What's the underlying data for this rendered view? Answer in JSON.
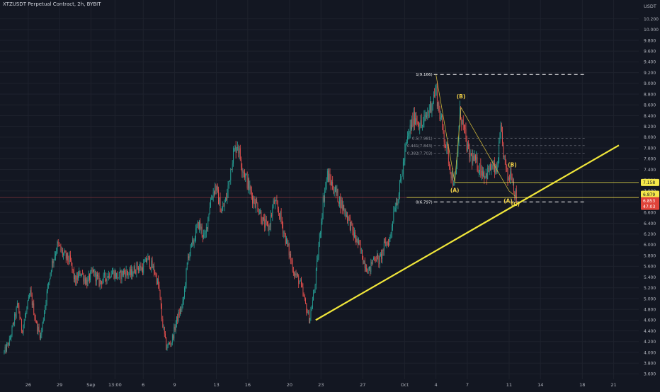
{
  "header": {
    "symbol_line": "XTZUSDT Perpetual Contract, 2h, BYBIT"
  },
  "chart_data": {
    "type": "candlestick",
    "symbol": "XTZUSDT Perpetual Contract",
    "interval": "2h",
    "exchange": "BYBIT",
    "currency_label": "USDT",
    "y_ticks": [
      "3.600",
      "3.800",
      "4.000",
      "4.200",
      "4.400",
      "4.600",
      "4.800",
      "5.000",
      "5.200",
      "5.400",
      "5.600",
      "5.800",
      "6.000",
      "6.200",
      "6.400",
      "6.600",
      "6.800",
      "7.000",
      "7.200",
      "7.400",
      "7.600",
      "7.800",
      "8.000",
      "8.200",
      "8.400",
      "8.600",
      "8.800",
      "9.000",
      "9.200",
      "9.400",
      "9.600",
      "9.800",
      "10.000",
      "10.200"
    ],
    "ylim": [
      3.5,
      10.55
    ],
    "x_ticks": [
      {
        "label": "26",
        "day": 0.0
      },
      {
        "label": "29",
        "day": 3.0
      },
      {
        "label": "Sep",
        "day": 6.0
      },
      {
        "label": "13:00",
        "day": 8.3
      },
      {
        "label": "6",
        "day": 11.0
      },
      {
        "label": "9",
        "day": 14.0
      },
      {
        "label": "13",
        "day": 18.0
      },
      {
        "label": "16",
        "day": 21.0
      },
      {
        "label": "20",
        "day": 25.0
      },
      {
        "label": "23",
        "day": 28.0
      },
      {
        "label": "27",
        "day": 32.0
      },
      {
        "label": "Oct",
        "day": 36.0
      },
      {
        "label": "4",
        "day": 39.0
      },
      {
        "label": "7",
        "day": 42.0
      },
      {
        "label": "11",
        "day": 46.0
      },
      {
        "label": "14",
        "day": 49.0
      },
      {
        "label": "18",
        "day": 53.0
      },
      {
        "label": "21",
        "day": 56.0
      }
    ],
    "price_path": [
      [
        -2.3,
        4.0
      ],
      [
        -1.8,
        4.2
      ],
      [
        -1.0,
        4.9
      ],
      [
        -0.6,
        4.4
      ],
      [
        0.2,
        5.1
      ],
      [
        0.8,
        4.5
      ],
      [
        1.2,
        4.3
      ],
      [
        1.7,
        5.0
      ],
      [
        2.2,
        5.6
      ],
      [
        2.8,
        6.0
      ],
      [
        3.4,
        5.8
      ],
      [
        4.0,
        5.7
      ],
      [
        4.5,
        5.3
      ],
      [
        5.0,
        5.5
      ],
      [
        5.6,
        5.3
      ],
      [
        6.2,
        5.5
      ],
      [
        6.8,
        5.3
      ],
      [
        7.4,
        5.4
      ],
      [
        8.0,
        5.5
      ],
      [
        8.6,
        5.4
      ],
      [
        9.2,
        5.5
      ],
      [
        9.8,
        5.45
      ],
      [
        10.4,
        5.6
      ],
      [
        10.9,
        5.55
      ],
      [
        11.4,
        5.75
      ],
      [
        12.1,
        5.5
      ],
      [
        12.5,
        5.2
      ],
      [
        12.8,
        4.6
      ],
      [
        13.2,
        4.1
      ],
      [
        13.7,
        4.2
      ],
      [
        14.2,
        4.6
      ],
      [
        14.8,
        4.9
      ],
      [
        15.3,
        5.8
      ],
      [
        15.7,
        6.0
      ],
      [
        16.3,
        6.4
      ],
      [
        16.9,
        6.1
      ],
      [
        17.4,
        6.8
      ],
      [
        17.9,
        7.1
      ],
      [
        18.5,
        6.6
      ],
      [
        19.0,
        6.9
      ],
      [
        19.5,
        7.6
      ],
      [
        20.0,
        7.9
      ],
      [
        20.4,
        7.5
      ],
      [
        20.9,
        7.2
      ],
      [
        21.4,
        6.9
      ],
      [
        22.0,
        6.7
      ],
      [
        22.5,
        6.4
      ],
      [
        23.0,
        6.3
      ],
      [
        23.5,
        6.8
      ],
      [
        24.0,
        6.6
      ],
      [
        24.5,
        6.2
      ],
      [
        24.9,
        5.9
      ],
      [
        25.4,
        5.5
      ],
      [
        26.0,
        5.3
      ],
      [
        26.5,
        4.9
      ],
      [
        26.9,
        4.6
      ],
      [
        27.4,
        5.2
      ],
      [
        27.8,
        6.0
      ],
      [
        28.2,
        6.8
      ],
      [
        28.6,
        7.3
      ],
      [
        29.1,
        7.1
      ],
      [
        29.6,
        6.9
      ],
      [
        30.1,
        6.7
      ],
      [
        30.6,
        6.5
      ],
      [
        31.1,
        6.2
      ],
      [
        31.6,
        6.0
      ],
      [
        32.1,
        5.7
      ],
      [
        32.6,
        5.5
      ],
      [
        33.1,
        5.8
      ],
      [
        33.6,
        5.7
      ],
      [
        34.1,
        6.0
      ],
      [
        34.6,
        6.1
      ],
      [
        35.0,
        6.7
      ],
      [
        35.4,
        6.9
      ],
      [
        35.8,
        7.4
      ],
      [
        36.2,
        7.9
      ],
      [
        36.6,
        8.2
      ],
      [
        37.0,
        8.4
      ],
      [
        37.3,
        8.3
      ],
      [
        37.6,
        8.2
      ],
      [
        37.9,
        8.3
      ],
      [
        38.3,
        8.5
      ],
      [
        38.7,
        8.7
      ],
      [
        39.0,
        8.9
      ],
      [
        39.2,
        8.6
      ],
      [
        39.5,
        8.3
      ],
      [
        39.9,
        7.9
      ],
      [
        40.3,
        7.5
      ],
      [
        40.6,
        7.2
      ],
      [
        40.9,
        7.25
      ],
      [
        41.3,
        8.5
      ],
      [
        41.7,
        8.1
      ],
      [
        42.1,
        7.7
      ],
      [
        42.5,
        7.6
      ],
      [
        42.9,
        7.5
      ],
      [
        43.3,
        7.4
      ],
      [
        43.8,
        7.3
      ],
      [
        44.3,
        7.45
      ],
      [
        44.8,
        7.35
      ],
      [
        45.2,
        8.1
      ],
      [
        45.6,
        7.5
      ],
      [
        45.9,
        7.2
      ],
      [
        46.2,
        7.4
      ],
      [
        46.5,
        7.0
      ],
      [
        46.75,
        6.85
      ]
    ],
    "current_price": 6.879,
    "price_label_lower": 6.853,
    "countdown_label": "47:03",
    "hline_price_upper": 7.158,
    "hline_price_last": 6.879,
    "trendline": {
      "start": [
        27.5,
        4.6
      ],
      "end": [
        56.5,
        7.85
      ]
    },
    "fibonacci": {
      "x_start": 38.8,
      "x_end": 53.4,
      "levels": [
        {
          "label": "1(9.166)",
          "price": 9.166,
          "style": "bold"
        },
        {
          "label": "0.5(7.981)",
          "price": 7.981,
          "style": "faint"
        },
        {
          "label": "0.441(7.843)",
          "price": 7.843,
          "style": "faint"
        },
        {
          "label": "0.382(7.703)",
          "price": 7.703,
          "style": "faint"
        },
        {
          "label": "0(6.797)",
          "price": 6.797,
          "style": "bold"
        }
      ]
    },
    "abc_pattern_1": {
      "points": [
        [
          39.0,
          9.166
        ],
        [
          40.8,
          7.16
        ],
        [
          41.4,
          8.55
        ],
        [
          46.0,
          7.0
        ],
        [
          46.6,
          6.9
        ]
      ],
      "labels": [
        {
          "text": "(A)",
          "day": 40.8,
          "price": 6.98,
          "color": "#f0d048"
        },
        {
          "text": "(B)",
          "day": 41.4,
          "price": 8.72,
          "color": "#f0d048"
        },
        {
          "text": "(C)",
          "day": 46.6,
          "price": 6.72,
          "color": "#f0d048"
        }
      ]
    },
    "abc_pattern_2_labels": [
      {
        "text": "(B)",
        "day": 46.3,
        "price": 7.45,
        "color": "#f0d048"
      },
      {
        "text": "(A)",
        "day": 45.9,
        "price": 6.78,
        "color": "#f0d048"
      }
    ]
  },
  "ui": {
    "usdt_label": "USDT",
    "price_tags": [
      {
        "text": "7.158",
        "price": 7.158,
        "bg": "#f5e84a",
        "fg": "#131722"
      },
      {
        "text": "6.879",
        "price": 6.94,
        "bg": "#f5e84a",
        "fg": "#131722"
      },
      {
        "text": "6.853",
        "price": 6.82,
        "bg": "#e0433a",
        "fg": "#ffffff"
      },
      {
        "text": "47:03",
        "price": 6.715,
        "bg": "#e0433a",
        "fg": "#ffffff"
      }
    ]
  },
  "colors": {
    "background": "#131722",
    "up": "#26a69a",
    "down": "#ef5350",
    "grid": "#1e222d",
    "axis_text": "#b2b5be",
    "annotation_yellow": "#f0e63a",
    "hline_yellow": "#f5e84a",
    "fib_bold": "#ffffff",
    "fib_faint": "#787b86",
    "abc_lines": "#c9b23a",
    "last_price_line": "#ef5350"
  }
}
